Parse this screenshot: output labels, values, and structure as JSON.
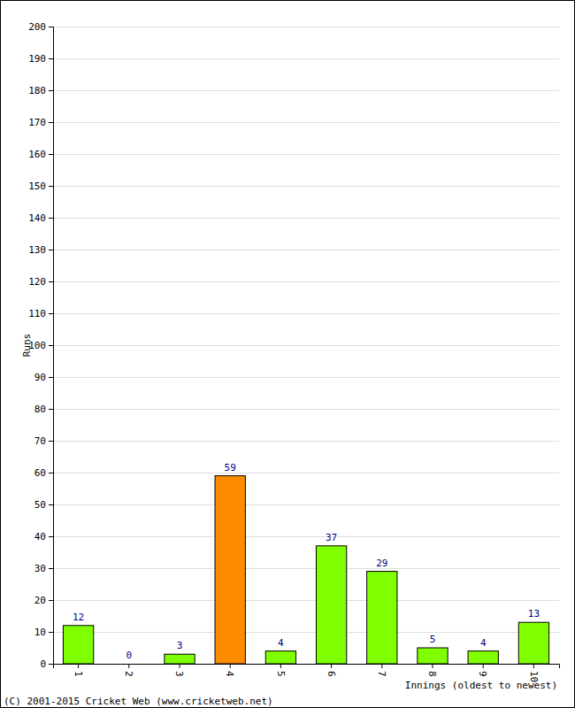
{
  "chart_data": {
    "type": "bar",
    "x_label": "Innings (oldest to newest)",
    "y_label": "Runs",
    "annotations": [
      "(C) 2001-2015 Cricket Web (www.cricketweb.net)"
    ],
    "categories": [
      "1",
      "2",
      "3",
      "4",
      "5",
      "6",
      "7",
      "8",
      "9",
      "10"
    ],
    "values": [
      12,
      0,
      3,
      59,
      4,
      37,
      29,
      5,
      4,
      13
    ],
    "colors": [
      "#80ff00",
      "#80ff00",
      "#80ff00",
      "#ff8c00",
      "#80ff00",
      "#80ff00",
      "#80ff00",
      "#80ff00",
      "#80ff00",
      "#80ff00"
    ],
    "ylim": [
      0,
      200
    ],
    "yticks": [
      0,
      10,
      20,
      30,
      40,
      50,
      60,
      70,
      80,
      90,
      100,
      110,
      120,
      130,
      140,
      150,
      160,
      170,
      180,
      190,
      200
    ],
    "grid": true,
    "data_labels": true
  }
}
